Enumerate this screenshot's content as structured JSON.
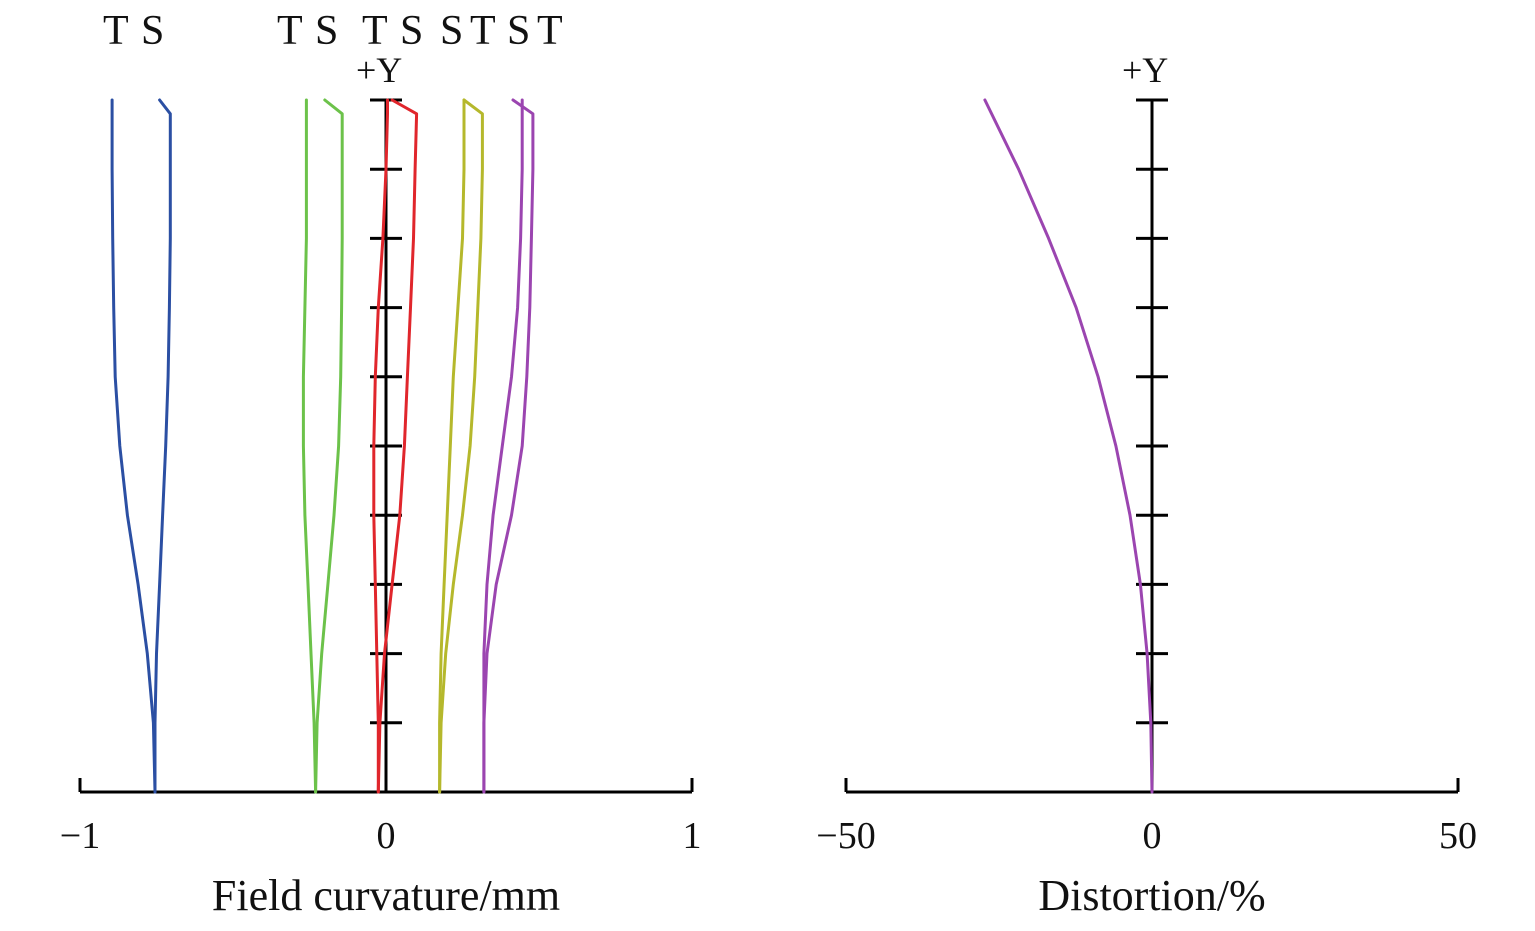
{
  "chart_data": [
    {
      "type": "line",
      "xlabel": "Field curvature/mm",
      "ylabel": "+Y",
      "xlim": [
        -1,
        1
      ],
      "ylim": [
        0,
        1
      ],
      "x_ticks": [
        -1,
        0,
        1
      ],
      "x_tick_labels": [
        "−1",
        "0",
        "1"
      ],
      "y_ticks": [
        0,
        0.1,
        0.2,
        0.3,
        0.4,
        0.5,
        0.6,
        0.7,
        0.8,
        0.9,
        1.0
      ],
      "legend_position": "top",
      "legend": [
        {
          "labels": [
            "T",
            "S"
          ],
          "color": "#2b4fa3"
        },
        {
          "labels": [
            "T",
            "S"
          ],
          "color": "#6cc24a"
        },
        {
          "labels": [
            "T",
            "S"
          ],
          "color": "#e0262c"
        },
        {
          "labels": [
            "S",
            "T"
          ],
          "color": "#b5b82c"
        },
        {
          "labels": [
            "S",
            "T"
          ],
          "color": "#9b45b0"
        }
      ],
      "series": [
        {
          "color": "#2b4fa3",
          "y": [
            0,
            0.1,
            0.2,
            0.3,
            0.4,
            0.5,
            0.6,
            0.7,
            0.8,
            0.9,
            0.98,
            1.0
          ],
          "x": [
            -0.755,
            -0.76,
            -0.78,
            -0.81,
            -0.845,
            -0.87,
            -0.885,
            -0.89,
            -0.893,
            -0.895,
            -0.895,
            -0.895
          ]
        },
        {
          "color": "#2b4fa3",
          "y": [
            0,
            0.1,
            0.2,
            0.3,
            0.4,
            0.5,
            0.6,
            0.7,
            0.8,
            0.9,
            0.98,
            1.0
          ],
          "x": [
            -0.755,
            -0.755,
            -0.75,
            -0.74,
            -0.73,
            -0.72,
            -0.712,
            -0.708,
            -0.705,
            -0.705,
            -0.705,
            -0.74
          ]
        },
        {
          "color": "#6cc24a",
          "y": [
            0,
            0.1,
            0.2,
            0.3,
            0.4,
            0.5,
            0.6,
            0.7,
            0.8,
            0.9,
            0.98,
            1.0
          ],
          "x": [
            -0.23,
            -0.235,
            -0.245,
            -0.255,
            -0.265,
            -0.27,
            -0.27,
            -0.265,
            -0.26,
            -0.26,
            -0.26,
            -0.26
          ]
        },
        {
          "color": "#6cc24a",
          "y": [
            0,
            0.1,
            0.2,
            0.3,
            0.4,
            0.5,
            0.6,
            0.7,
            0.8,
            0.9,
            0.98,
            1.0
          ],
          "x": [
            -0.23,
            -0.225,
            -0.21,
            -0.19,
            -0.17,
            -0.155,
            -0.148,
            -0.145,
            -0.143,
            -0.143,
            -0.143,
            -0.2
          ]
        },
        {
          "color": "#e0262c",
          "y": [
            0,
            0.1,
            0.2,
            0.3,
            0.4,
            0.5,
            0.6,
            0.7,
            0.8,
            0.9,
            0.98,
            1.0
          ],
          "x": [
            -0.025,
            -0.025,
            -0.03,
            -0.035,
            -0.04,
            -0.04,
            -0.035,
            -0.025,
            -0.01,
            0.0,
            0.005,
            0.005
          ]
        },
        {
          "color": "#e0262c",
          "y": [
            0,
            0.1,
            0.2,
            0.3,
            0.4,
            0.5,
            0.6,
            0.7,
            0.8,
            0.9,
            0.98,
            1.0
          ],
          "x": [
            -0.025,
            -0.02,
            -0.005,
            0.02,
            0.045,
            0.06,
            0.07,
            0.08,
            0.09,
            0.095,
            0.1,
            0.02
          ]
        },
        {
          "color": "#b5b82c",
          "y": [
            0,
            0.1,
            0.2,
            0.3,
            0.4,
            0.5,
            0.6,
            0.7,
            0.8,
            0.9,
            0.98,
            1.0
          ],
          "x": [
            0.175,
            0.175,
            0.18,
            0.19,
            0.2,
            0.21,
            0.22,
            0.235,
            0.25,
            0.255,
            0.255,
            0.255
          ]
        },
        {
          "color": "#b5b82c",
          "y": [
            0,
            0.1,
            0.2,
            0.3,
            0.4,
            0.5,
            0.6,
            0.7,
            0.8,
            0.9,
            0.98,
            1.0
          ],
          "x": [
            0.175,
            0.18,
            0.195,
            0.22,
            0.25,
            0.275,
            0.29,
            0.3,
            0.31,
            0.315,
            0.315,
            0.255
          ]
        },
        {
          "color": "#9b45b0",
          "y": [
            0,
            0.1,
            0.2,
            0.3,
            0.4,
            0.5,
            0.6,
            0.7,
            0.8,
            0.9,
            0.98,
            1.0
          ],
          "x": [
            0.32,
            0.32,
            0.32,
            0.33,
            0.35,
            0.38,
            0.41,
            0.43,
            0.44,
            0.445,
            0.445,
            0.445
          ]
        },
        {
          "color": "#9b45b0",
          "y": [
            0,
            0.1,
            0.2,
            0.3,
            0.4,
            0.5,
            0.6,
            0.7,
            0.8,
            0.9,
            0.98,
            1.0
          ],
          "x": [
            0.32,
            0.32,
            0.33,
            0.36,
            0.41,
            0.445,
            0.46,
            0.47,
            0.475,
            0.48,
            0.48,
            0.415
          ]
        }
      ]
    },
    {
      "type": "line",
      "xlabel": "Distortion/%",
      "ylabel": "+Y",
      "xlim": [
        -50,
        50
      ],
      "ylim": [
        0,
        1
      ],
      "x_ticks": [
        -50,
        0,
        50
      ],
      "x_tick_labels": [
        "−50",
        "0",
        "50"
      ],
      "y_ticks": [
        0,
        0.1,
        0.2,
        0.3,
        0.4,
        0.5,
        0.6,
        0.7,
        0.8,
        0.9,
        1.0
      ],
      "series": [
        {
          "color": "#9b45b0",
          "y": [
            0,
            0.1,
            0.2,
            0.3,
            0.4,
            0.5,
            0.6,
            0.7,
            0.8,
            0.9,
            1.0
          ],
          "x": [
            0,
            -0.2,
            -0.8,
            -1.9,
            -3.6,
            -5.9,
            -8.8,
            -12.4,
            -16.9,
            -21.8,
            -27.3
          ]
        }
      ]
    }
  ]
}
